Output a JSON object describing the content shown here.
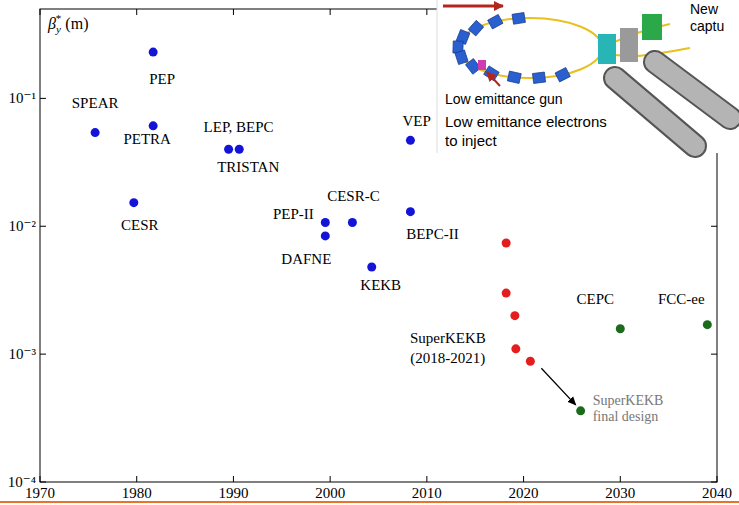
{
  "chart_data": {
    "type": "scatter",
    "log": "y",
    "ylabel": "βy* (m)",
    "xlim": [
      1970,
      2040
    ],
    "xticks": [
      1970,
      1980,
      1990,
      2000,
      2010,
      2020,
      2030,
      2040
    ],
    "ylim": [
      0.0001,
      0.5
    ],
    "yticks": [
      {
        "value": 0.0001,
        "label": "10⁻⁴"
      },
      {
        "value": 0.001,
        "label": "10⁻³"
      },
      {
        "value": 0.01,
        "label": "10⁻²"
      },
      {
        "value": 0.1,
        "label": "10⁻¹"
      }
    ],
    "series": [
      {
        "color": "#1414d8",
        "marker": "circle",
        "x": [
          1975.7,
          1981.7,
          1981.7,
          1979.7,
          1989.5,
          1990.6,
          1999.5,
          1999.5,
          2002.3,
          2004.3,
          2008.3,
          2008.3
        ],
        "values": [
          0.054,
          0.23,
          0.061,
          0.0153,
          0.04,
          0.04,
          0.0107,
          0.0084,
          0.0107,
          0.0048,
          0.047,
          0.013
        ],
        "point_labels": [
          "SPEAR",
          "PEP",
          "PETRA",
          "CESR",
          "LEP, BEPC",
          "TRISTAN",
          "PEP-II",
          "DAFNE",
          "CESR-C",
          "KEKB",
          "VEP",
          "BEPC-II"
        ]
      },
      {
        "color": "#e41e1e",
        "marker": "circle",
        "x": [
          2018.2,
          2018.2,
          2019.1,
          2019.2,
          2020.7
        ],
        "values": [
          0.0074,
          0.003,
          0.002,
          0.0011,
          0.00088
        ],
        "point_labels": [
          null,
          null,
          null,
          [
            "SuperKEKB",
            "(2018-2021)"
          ],
          null
        ]
      },
      {
        "color": "#1b6b1b",
        "marker": "circle",
        "x": [
          2030,
          2039,
          2025.9
        ],
        "values": [
          0.00158,
          0.0017,
          0.00036
        ],
        "point_labels": [
          "CEPC",
          "FCC-ee",
          [
            "SuperKEKB",
            "final design"
          ]
        ]
      }
    ]
  },
  "inset": {
    "gun_label": "Low emittance gun",
    "electrons_label": [
      "Low emittance electrons",
      "to inject"
    ],
    "corner_label": [
      "New",
      "captu"
    ]
  }
}
